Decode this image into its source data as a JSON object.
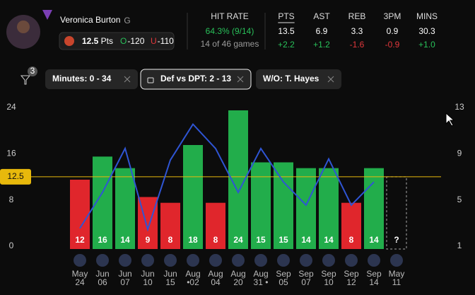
{
  "header": {
    "name": "Veronica Burton",
    "position": "G",
    "line": 12.5,
    "line_unit": "Pts",
    "over_label": "O",
    "over_odds": -120,
    "under_label": "U",
    "under_odds": -110,
    "hit_rate_title": "HIT RATE",
    "hit_rate": "64.3% (9/14)",
    "games": "14 of 46 games",
    "stats": [
      {
        "label": "PTS",
        "value": 13.5,
        "delta": "+2.2"
      },
      {
        "label": "AST",
        "value": 6.9,
        "delta": "+1.2"
      },
      {
        "label": "REB",
        "value": 3.3,
        "delta": "-1.6"
      },
      {
        "label": "3PM",
        "value": 0.9,
        "delta": "-0.9"
      },
      {
        "label": "MINS",
        "value": 30.3,
        "delta": "+1.0"
      }
    ]
  },
  "filters": {
    "count": 3,
    "items": [
      "Minutes: 0 - 34",
      "Def vs DPT: 2 - 13",
      "W/O: T. Hayes"
    ]
  },
  "chart_data": {
    "type": "bar",
    "categories": [
      "May 24",
      "Jun 06",
      "Jun 07",
      "Jun 10",
      "Jun 15",
      "Aug •02",
      "Aug 04",
      "Aug 20",
      "Aug 31 •",
      "Sep 05",
      "Sep 07",
      "Sep 10",
      "Sep 12",
      "Sep 14",
      "May 11"
    ],
    "series": [
      {
        "values": [
          12,
          16,
          14,
          9,
          8,
          18,
          8,
          24,
          15,
          15,
          14,
          14,
          8,
          14,
          null
        ],
        "value_labels": [
          "12",
          "16",
          "14",
          "9",
          "8",
          "18",
          "8",
          "24",
          "15",
          "15",
          "14",
          "14",
          "8",
          "14",
          "?"
        ]
      },
      {
        "axis": "y2",
        "color": "#2f55d4",
        "values": [
          2.8,
          5.9,
          9.7,
          2.7,
          8.7,
          11.8,
          9.7,
          5.9,
          9.7,
          6.8,
          4.8,
          8.8,
          4.8,
          6.8,
          null
        ]
      }
    ],
    "threshold": 12.5,
    "over_color": "#22ad4b",
    "under_color": "#e0262c",
    "threshold_color": "#e8b90c",
    "ylim": [
      0,
      24
    ],
    "yticks": [
      0,
      8,
      16,
      24
    ],
    "y2lim": [
      1,
      13
    ],
    "y2ticks": [
      1,
      5,
      9,
      13
    ]
  }
}
